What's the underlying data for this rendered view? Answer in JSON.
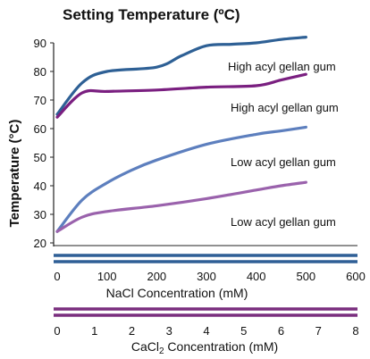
{
  "chart_data": {
    "type": "line",
    "title": "Setting Temperature (ºC)",
    "ylabel": "Temperature (°C)",
    "ylim": [
      20,
      90
    ],
    "y_ticks": [
      "20",
      "30",
      "40",
      "50",
      "60",
      "70",
      "80",
      "90"
    ],
    "x_axes": [
      {
        "label": "NaCl Concentration (mM)",
        "ticks": [
          "0",
          "100",
          "200",
          "300",
          "400",
          "500",
          "600"
        ],
        "range": [
          0,
          600
        ],
        "color": "#2f5f96"
      },
      {
        "label_prefix": "CaCl",
        "label_sub": "2",
        "label_suffix": " Concentration (mM)",
        "ticks": [
          "0",
          "1",
          "2",
          "3",
          "4",
          "5",
          "6",
          "7",
          "8"
        ],
        "range": [
          0,
          8
        ],
        "color": "#7a2e7e"
      }
    ],
    "series": [
      {
        "name": "High acyl gellan gum",
        "color": "#2e6095",
        "x": [
          0,
          50,
          100,
          200,
          250,
          300,
          350,
          400,
          450,
          500
        ],
        "y": [
          65,
          76,
          80,
          81.5,
          85.5,
          89,
          89.5,
          90,
          91.2,
          92
        ]
      },
      {
        "name": "High acyl gellan gum",
        "color": "#7a1f80",
        "x": [
          0,
          50,
          100,
          200,
          300,
          400,
          450,
          500
        ],
        "y": [
          64,
          72.5,
          73,
          73.5,
          74.5,
          75,
          77,
          79
        ]
      },
      {
        "name": "Low acyl gellan gum",
        "color": "#5d7fbe",
        "x": [
          0,
          50,
          100,
          150,
          200,
          300,
          400,
          450,
          500
        ],
        "y": [
          24,
          35,
          41,
          45.5,
          49,
          54.5,
          58,
          59.2,
          60.5
        ]
      },
      {
        "name": "Low acyl gellan gum",
        "color": "#9a62ac",
        "x": [
          0,
          50,
          100,
          200,
          300,
          400,
          450,
          500
        ],
        "y": [
          24,
          29,
          31,
          33,
          35.5,
          38.5,
          40,
          41.2
        ]
      }
    ]
  }
}
